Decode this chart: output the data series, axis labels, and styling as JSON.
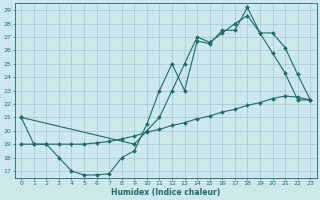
{
  "xlabel": "Humidex (Indice chaleur)",
  "bg_color": "#cce8ea",
  "grid_color": "#a0c8cc",
  "line_color": "#1a6b6b",
  "xlim": [
    -0.5,
    23.5
  ],
  "ylim": [
    16.5,
    29.5
  ],
  "xticks": [
    0,
    1,
    2,
    3,
    4,
    5,
    6,
    7,
    8,
    9,
    10,
    11,
    12,
    13,
    14,
    15,
    16,
    17,
    18,
    19,
    20,
    21,
    22,
    23
  ],
  "yticks": [
    17,
    18,
    19,
    20,
    21,
    22,
    23,
    24,
    25,
    26,
    27,
    28,
    29
  ],
  "line1_x": [
    0,
    1,
    2,
    3,
    4,
    5,
    6,
    7,
    8,
    9,
    10,
    11,
    12,
    13,
    14,
    15,
    16,
    17,
    18,
    19,
    20,
    21,
    22,
    23
  ],
  "line1_y": [
    21,
    19,
    19,
    18,
    17,
    16.7,
    16.7,
    16.8,
    18.0,
    18.5,
    20.5,
    23.0,
    25.0,
    23.0,
    26.7,
    26.5,
    27.5,
    27.5,
    29.2,
    27.3,
    25.8,
    24.3,
    22.3,
    22.3
  ],
  "line2_x": [
    0,
    1,
    2,
    3,
    4,
    5,
    6,
    7,
    8,
    9,
    10,
    11,
    12,
    13,
    14,
    15,
    16,
    17,
    18,
    19,
    20,
    21,
    22,
    23
  ],
  "line2_y": [
    19,
    19,
    19,
    19,
    19,
    19.0,
    19.1,
    19.2,
    19.4,
    19.6,
    19.9,
    20.1,
    20.4,
    20.6,
    20.9,
    21.1,
    21.4,
    21.6,
    21.9,
    22.1,
    22.4,
    22.6,
    22.5,
    22.3
  ],
  "line3_x": [
    0,
    9,
    10,
    11,
    12,
    13,
    14,
    15,
    16,
    17,
    18,
    19,
    20,
    21,
    22,
    23
  ],
  "line3_y": [
    21,
    19,
    20,
    21,
    23.0,
    25.0,
    27.0,
    26.6,
    27.3,
    28.0,
    28.6,
    27.3,
    27.3,
    26.2,
    24.2,
    22.3
  ]
}
